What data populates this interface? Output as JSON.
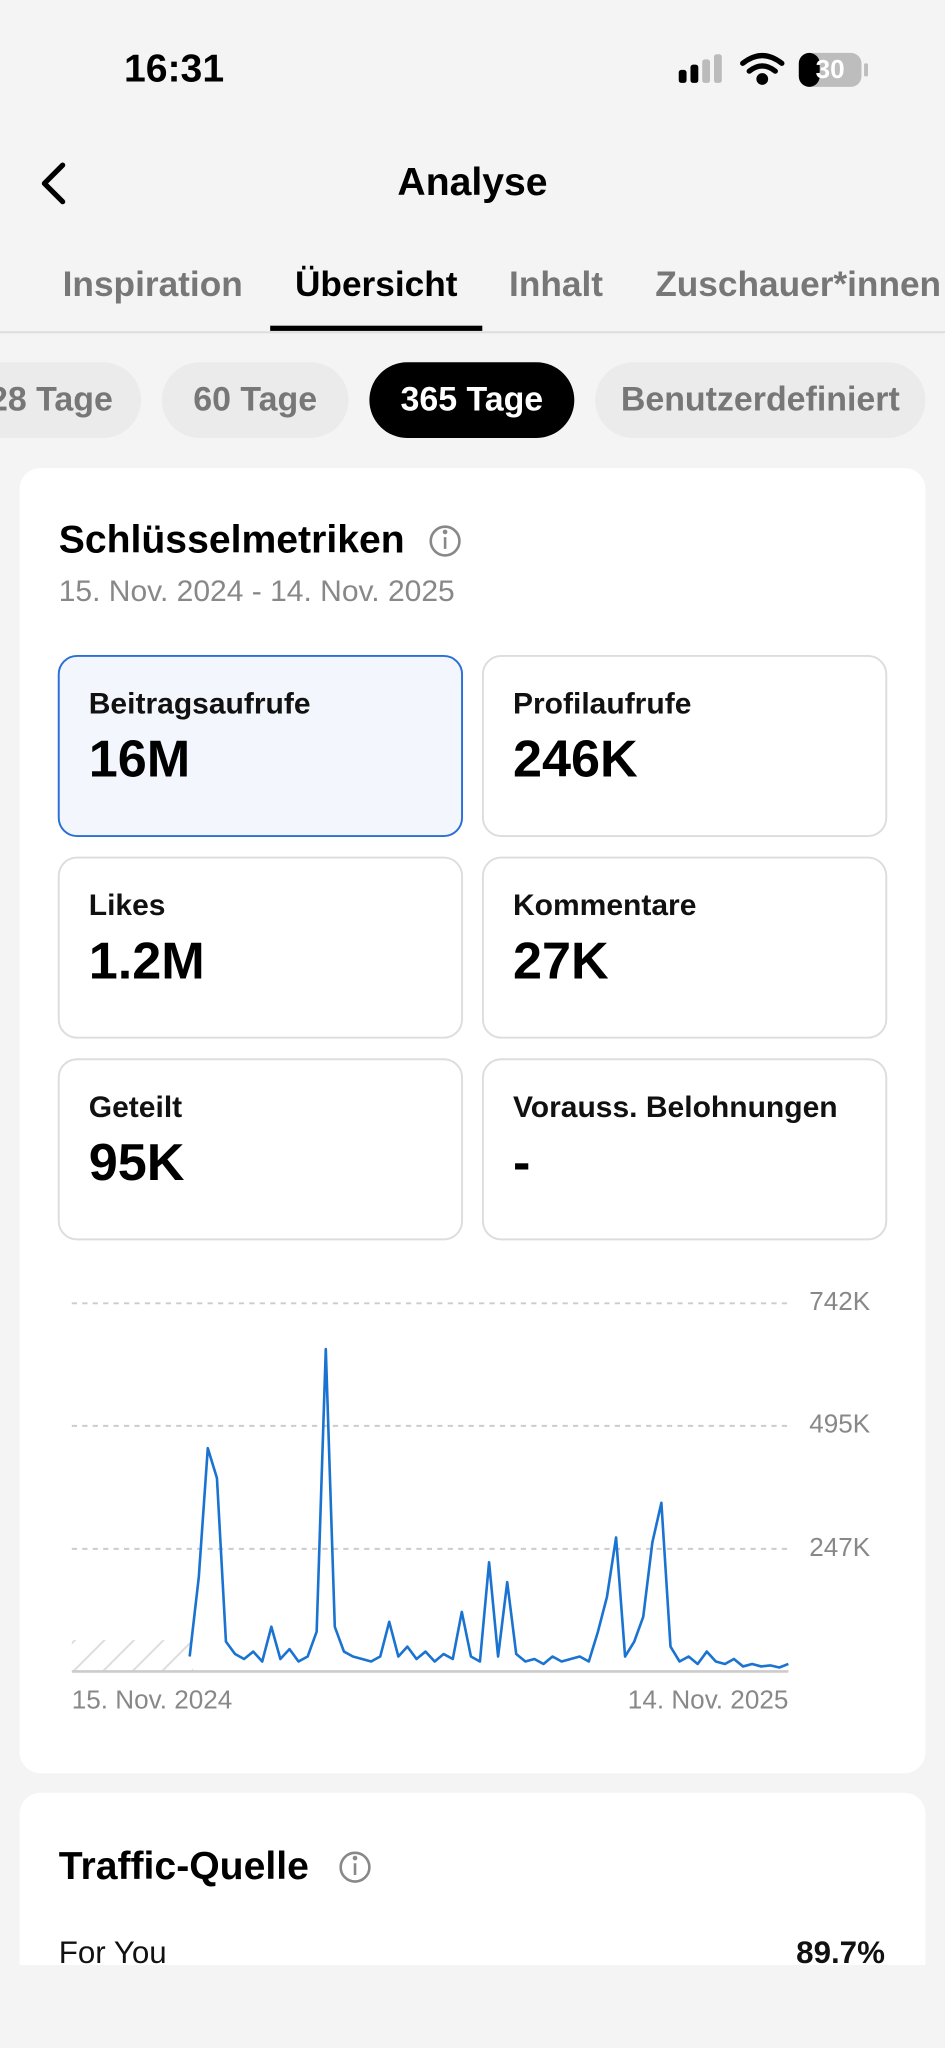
{
  "status_bar": {
    "time": "16:31",
    "battery": "30"
  },
  "header": {
    "title": "Analyse"
  },
  "tabs": [
    {
      "label": "Inspiration",
      "active": false
    },
    {
      "label": "Übersicht",
      "active": true
    },
    {
      "label": "Inhalt",
      "active": false
    },
    {
      "label": "Zuschauer*innen",
      "active": false
    }
  ],
  "ranges": [
    {
      "label": "28 Tage",
      "active": false
    },
    {
      "label": "60 Tage",
      "active": false
    },
    {
      "label": "365 Tage",
      "active": true
    },
    {
      "label": "Benutzerdefiniert",
      "active": false
    }
  ],
  "key_metrics": {
    "title": "Schlüsselmetriken",
    "date_range": "15. Nov. 2024 - 14. Nov. 2025",
    "tiles": [
      {
        "label": "Beitragsaufrufe",
        "value": "16M",
        "selected": true
      },
      {
        "label": "Profilaufrufe",
        "value": "246K",
        "selected": false
      },
      {
        "label": "Likes",
        "value": "1.2M",
        "selected": false
      },
      {
        "label": "Kommentare",
        "value": "27K",
        "selected": false
      },
      {
        "label": "Geteilt",
        "value": "95K",
        "selected": false
      },
      {
        "label": "Vorauss. Belohnungen",
        "value": "-",
        "selected": false
      }
    ]
  },
  "chart_data": {
    "type": "line",
    "categories": [
      "15. Nov. 2024",
      null,
      null,
      null,
      null,
      null,
      null,
      null,
      null,
      null,
      null,
      null,
      null,
      null,
      null,
      null,
      null,
      null,
      null,
      null,
      null,
      null,
      null,
      null,
      null,
      null,
      null,
      null,
      null,
      null,
      null,
      null,
      null,
      null,
      null,
      null,
      null,
      null,
      null,
      null,
      null,
      null,
      null,
      null,
      null,
      null,
      null,
      null,
      null,
      null,
      null,
      null,
      null,
      null,
      null,
      null,
      null,
      null,
      null,
      null,
      null,
      null,
      null,
      null,
      null,
      null,
      null,
      null,
      null,
      null,
      null,
      null,
      null,
      null,
      null,
      null,
      null,
      null,
      null,
      "14. Nov. 2025"
    ],
    "series": [
      {
        "name": "Beitragsaufrufe",
        "color": "#1a73d1",
        "values": [
          null,
          null,
          null,
          null,
          null,
          null,
          null,
          null,
          null,
          null,
          null,
          null,
          null,
          30000,
          190000,
          450000,
          390000,
          60000,
          35000,
          25000,
          40000,
          20000,
          90000,
          25000,
          45000,
          20000,
          30000,
          80000,
          650000,
          90000,
          40000,
          30000,
          25000,
          20000,
          30000,
          100000,
          30000,
          50000,
          25000,
          40000,
          20000,
          35000,
          25000,
          120000,
          30000,
          20000,
          220000,
          30000,
          180000,
          35000,
          20000,
          25000,
          15000,
          30000,
          20000,
          25000,
          30000,
          20000,
          80000,
          150000,
          270000,
          30000,
          60000,
          110000,
          260000,
          340000,
          50000,
          20000,
          30000,
          15000,
          40000,
          20000,
          15000,
          25000,
          10000,
          15000,
          10000,
          12000,
          8000,
          15000
        ]
      }
    ],
    "ylim": [
      0,
      742000
    ],
    "yticks": [
      {
        "value": 247000,
        "label": "247K"
      },
      {
        "value": 495000,
        "label": "495K"
      },
      {
        "value": 742000,
        "label": "742K"
      }
    ],
    "grid": true
  },
  "traffic": {
    "title": "Traffic-Quelle",
    "rows": [
      {
        "label": "For You",
        "value": "89.7%"
      }
    ]
  }
}
